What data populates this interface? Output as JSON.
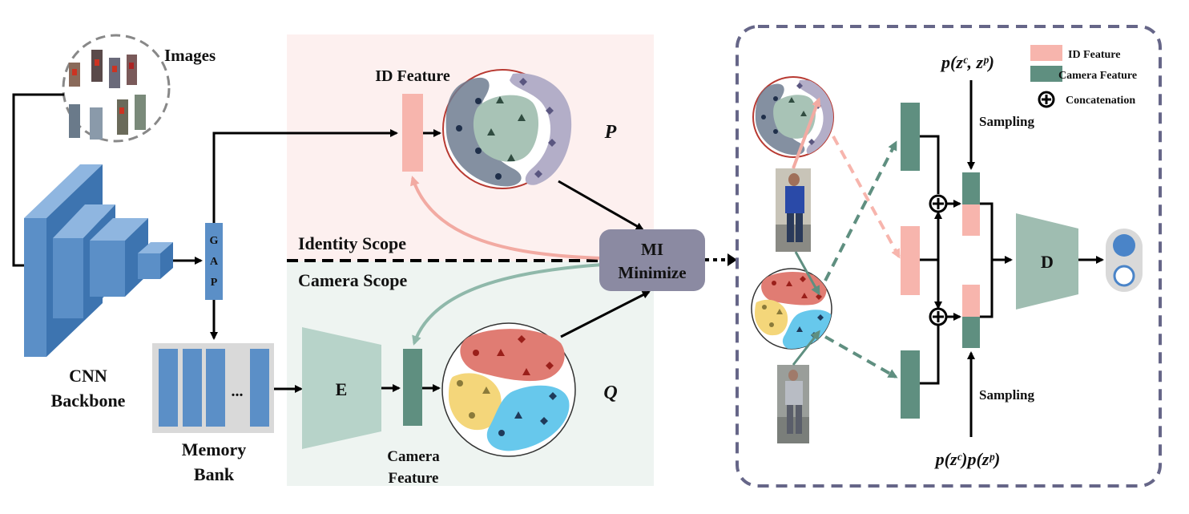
{
  "labels": {
    "images": "Images",
    "cnn_line1": "CNN",
    "cnn_line2": "Backbone",
    "gap": [
      "G",
      "A",
      "P"
    ],
    "memory_line1": "Memory",
    "memory_line2": "Bank",
    "memory_ellipsis": "...",
    "id_feature": "ID Feature",
    "identity_scope": "Identity Scope",
    "camera_scope": "Camera Scope",
    "encoder": "E",
    "camera_feature_line1": "Camera",
    "camera_feature_line2": "Feature",
    "p_symbol": "P",
    "q_symbol": "Q",
    "mi_line1": "MI",
    "mi_line2": "Minimize",
    "joint": "p(zᶜ, zᵖ)",
    "product": "p(zᶜ)p(zᵖ)",
    "sampling_top": "Sampling",
    "sampling_bottom": "Sampling",
    "discriminator": "D"
  },
  "legend": [
    {
      "label": "ID Feature",
      "color": "#f7b5ad"
    },
    {
      "label": "Camera Feature",
      "color": "#5f8f80"
    },
    {
      "label": "Concatenation",
      "color": "#000000"
    }
  ],
  "colors": {
    "identity_bg": "#fdf0ef",
    "camera_bg": "#eef4f1",
    "cnn_blue": "#5b8fc7",
    "id_feature": "#f7b5ad",
    "camera_feature": "#5f8f80",
    "encoder": "#b7d3c9",
    "mi_box": "#8b8aa2",
    "dashed_panel": "#666688",
    "cluster_red": "#e07c73",
    "cluster_yellow": "#f4d67a",
    "cluster_blue": "#67c8ec",
    "cluster_gray": "#6f7d90",
    "cluster_green": "#a8c3b6",
    "cluster_purple": "#b3aec8"
  }
}
